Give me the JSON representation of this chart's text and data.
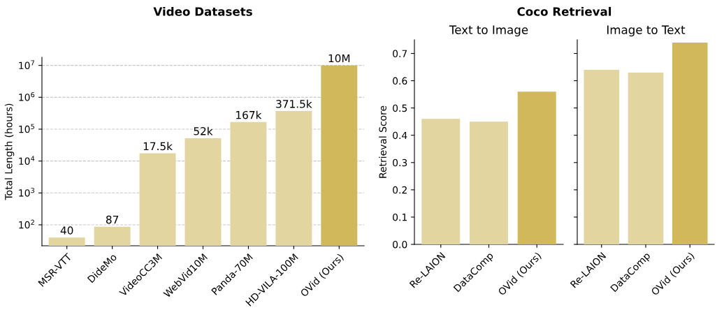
{
  "chart_data": [
    {
      "type": "bar",
      "title": "Video Datasets",
      "ylabel": "Total Length (hours)",
      "log": "y",
      "categories": [
        "MSR-VTT",
        "DideMo",
        "VideoCC3M",
        "WebVid10M",
        "Panda-70M",
        "HD-VILA-100M",
        "OVid (Ours)"
      ],
      "values": [
        40,
        87,
        17500,
        52000,
        167000,
        371500,
        10000000
      ],
      "value_labels": [
        "40",
        "87",
        "17.5k",
        "52k",
        "167k",
        "371.5k",
        "10M"
      ],
      "colors": [
        "#e2d59f",
        "#e2d59f",
        "#e2d59f",
        "#e2d59f",
        "#e2d59f",
        "#e2d59f",
        "#d1b85a"
      ],
      "ylim": [
        22,
        18000000
      ],
      "yticks": [
        {
          "value": 100,
          "label": "10$^{2}$"
        },
        {
          "value": 1000,
          "label": "10$^{3}$"
        },
        {
          "value": 10000,
          "label": "10$^{4}$"
        },
        {
          "value": 100000,
          "label": "10$^{5}$"
        },
        {
          "value": 1000000,
          "label": "10$^{6}$"
        },
        {
          "value": 10000000,
          "label": "10$^{7}$"
        }
      ],
      "grid": "y"
    },
    {
      "type": "bar",
      "title": "Coco Retrieval",
      "subtitle": "Text to Image",
      "ylabel": "Retrieval Score",
      "categories": [
        "Re-LAION",
        "DataComp",
        "OVid (Ours)"
      ],
      "values": [
        0.46,
        0.45,
        0.56
      ],
      "colors": [
        "#e2d59f",
        "#e2d59f",
        "#d1b85a"
      ],
      "ylim": [
        0,
        0.75
      ],
      "yticks": [
        {
          "value": 0,
          "label": "0.0"
        },
        0.1,
        0.2,
        0.3,
        0.4,
        0.5,
        0.6,
        0.7
      ]
    },
    {
      "type": "bar",
      "subtitle": "Image to Text",
      "categories": [
        "Re-LAION",
        "DataComp",
        "OVid (Ours)"
      ],
      "values": [
        0.64,
        0.63,
        0.74
      ],
      "colors": [
        "#e2d59f",
        "#e2d59f",
        "#d1b85a"
      ],
      "ylim": [
        0,
        0.75
      ],
      "yticks": [
        0,
        0.1,
        0.2,
        0.3,
        0.4,
        0.5,
        0.6,
        0.7
      ],
      "tick_labels": "x"
    }
  ]
}
